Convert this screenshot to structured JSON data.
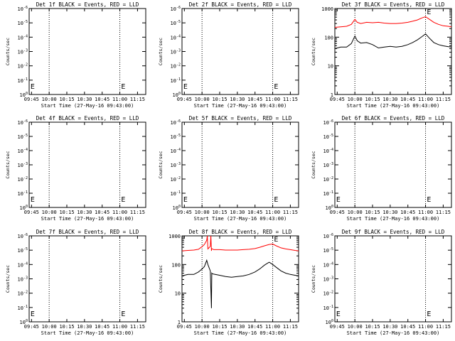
{
  "page": {
    "title": "",
    "background": "#ffffff"
  },
  "style": {
    "events_color": "#000000",
    "lld_color": "#ff0000",
    "axis_color": "#000000"
  },
  "chart_data": [
    {
      "type": "line",
      "detector": "1f",
      "title": "Det 1f BLACK = Events, RED = LLD",
      "xlabel": "Start Time (27-May-16 09:43:00)",
      "ylabel": "Counts/sec",
      "y_scale": "log-decade-labels",
      "ytick_labels": [
        "10^0",
        "10^-1",
        "10^-2",
        "10^-3",
        "10^-4",
        "10^-5",
        "10^-6"
      ],
      "xtick_labels": [
        "09:45",
        "10:00",
        "10:15",
        "10:30",
        "10:45",
        "11:00",
        "11:15"
      ],
      "x_unit": "minutes after 09:43",
      "xlim": [
        0,
        99
      ],
      "vertical_markers_min": [
        17,
        77
      ],
      "attenuator_marks": [
        {
          "x_min": 0.5,
          "label": "E"
        },
        {
          "x_min": 77.5,
          "label": "E"
        }
      ],
      "series": []
    },
    {
      "type": "line",
      "detector": "2f",
      "title": "Det 2f BLACK = Events, RED = LLD",
      "xlabel": "Start Time (27-May-16 09:43:00)",
      "ylabel": "Counts/sec",
      "y_scale": "log-decade-labels",
      "ytick_labels": [
        "10^0",
        "10^-1",
        "10^-2",
        "10^-3",
        "10^-4",
        "10^-5",
        "10^-6"
      ],
      "xtick_labels": [
        "09:45",
        "10:00",
        "10:15",
        "10:30",
        "10:45",
        "11:00",
        "11:15"
      ],
      "x_unit": "minutes after 09:43",
      "xlim": [
        0,
        99
      ],
      "vertical_markers_min": [
        17,
        77
      ],
      "attenuator_marks": [
        {
          "x_min": 0.5,
          "label": "E"
        },
        {
          "x_min": 77.5,
          "label": "E"
        }
      ],
      "series": []
    },
    {
      "type": "line",
      "detector": "3f",
      "title": "Det 3f BLACK = Events, RED = LLD",
      "xlabel": "Start Time (27-May-16 09:43:00)",
      "ylabel": "Counts/sec",
      "y_scale": "log",
      "ylim": [
        1,
        1000
      ],
      "ytick_labels": [
        "1",
        "10",
        "100",
        "1000"
      ],
      "xtick_labels": [
        "09:45",
        "10:00",
        "10:15",
        "10:30",
        "10:45",
        "11:00",
        "11:15"
      ],
      "x_unit": "minutes after 09:43",
      "xlim": [
        0,
        99
      ],
      "vertical_markers_min": [
        17,
        77
      ],
      "attenuator_marks": [
        {
          "x_min": 77.5,
          "label": "E"
        }
      ],
      "series": [
        {
          "color": "#ff0000",
          "x": [
            0,
            5,
            10,
            14,
            17,
            19,
            22,
            27,
            32,
            37,
            42,
            47,
            52,
            57,
            62,
            66,
            70,
            74,
            77,
            80,
            84,
            88,
            92,
            96,
            99
          ],
          "y": [
            220,
            230,
            240,
            280,
            420,
            330,
            300,
            330,
            320,
            330,
            310,
            300,
            300,
            310,
            330,
            360,
            400,
            470,
            520,
            430,
            330,
            280,
            250,
            240,
            230
          ]
        },
        {
          "color": "#000000",
          "x": [
            0,
            5,
            10,
            14,
            17,
            19,
            22,
            27,
            32,
            37,
            42,
            47,
            52,
            57,
            62,
            66,
            70,
            74,
            77,
            80,
            84,
            88,
            92,
            96,
            99
          ],
          "y": [
            40,
            45,
            45,
            60,
            110,
            75,
            62,
            65,
            55,
            42,
            45,
            48,
            45,
            48,
            55,
            65,
            80,
            105,
            130,
            95,
            65,
            55,
            50,
            47,
            45
          ]
        }
      ]
    },
    {
      "type": "line",
      "detector": "4f",
      "title": "Det 4f BLACK = Events, RED = LLD",
      "xlabel": "Start Time (27-May-16 09:43:00)",
      "ylabel": "Counts/sec",
      "y_scale": "log-decade-labels",
      "ytick_labels": [
        "10^0",
        "10^-1",
        "10^-2",
        "10^-3",
        "10^-4",
        "10^-5",
        "10^-6"
      ],
      "xtick_labels": [
        "09:45",
        "10:00",
        "10:15",
        "10:30",
        "10:45",
        "11:00",
        "11:15"
      ],
      "x_unit": "minutes after 09:43",
      "xlim": [
        0,
        99
      ],
      "vertical_markers_min": [
        17,
        77
      ],
      "attenuator_marks": [
        {
          "x_min": 0.5,
          "label": "E"
        },
        {
          "x_min": 77.5,
          "label": "E"
        }
      ],
      "series": []
    },
    {
      "type": "line",
      "detector": "5f",
      "title": "Det 5f BLACK = Events, RED = LLD",
      "xlabel": "Start Time (27-May-16 09:43:00)",
      "ylabel": "Counts/sec",
      "y_scale": "log-decade-labels",
      "ytick_labels": [
        "10^0",
        "10^-1",
        "10^-2",
        "10^-3",
        "10^-4",
        "10^-5",
        "10^-6"
      ],
      "xtick_labels": [
        "09:45",
        "10:00",
        "10:15",
        "10:30",
        "10:45",
        "11:00",
        "11:15"
      ],
      "x_unit": "minutes after 09:43",
      "xlim": [
        0,
        99
      ],
      "vertical_markers_min": [
        17,
        77
      ],
      "attenuator_marks": [
        {
          "x_min": 0.5,
          "label": "E"
        },
        {
          "x_min": 77.5,
          "label": "E"
        }
      ],
      "series": []
    },
    {
      "type": "line",
      "detector": "6f",
      "title": "Det 6f BLACK = Events, RED = LLD",
      "xlabel": "Start Time (27-May-16 09:43:00)",
      "ylabel": "Counts/sec",
      "y_scale": "log-decade-labels",
      "ytick_labels": [
        "10^0",
        "10^-1",
        "10^-2",
        "10^-3",
        "10^-4",
        "10^-5",
        "10^-6"
      ],
      "xtick_labels": [
        "09:45",
        "10:00",
        "10:15",
        "10:30",
        "10:45",
        "11:00",
        "11:15"
      ],
      "x_unit": "minutes after 09:43",
      "xlim": [
        0,
        99
      ],
      "vertical_markers_min": [
        17,
        77
      ],
      "attenuator_marks": [
        {
          "x_min": 0.5,
          "label": "E"
        },
        {
          "x_min": 77.5,
          "label": "E"
        }
      ],
      "series": []
    },
    {
      "type": "line",
      "detector": "7f",
      "title": "Det 7f BLACK = Events, RED = LLD",
      "xlabel": "Start Time (27-May-16 09:43:00)",
      "ylabel": "Counts/sec",
      "y_scale": "log-decade-labels",
      "ytick_labels": [
        "10^0",
        "10^-1",
        "10^-2",
        "10^-3",
        "10^-4",
        "10^-5",
        "10^-6"
      ],
      "xtick_labels": [
        "09:45",
        "10:00",
        "10:15",
        "10:30",
        "10:45",
        "11:00",
        "11:15"
      ],
      "x_unit": "minutes after 09:43",
      "xlim": [
        0,
        99
      ],
      "vertical_markers_min": [
        17,
        77
      ],
      "attenuator_marks": [
        {
          "x_min": 0.5,
          "label": "E"
        },
        {
          "x_min": 77.5,
          "label": "E"
        }
      ],
      "series": []
    },
    {
      "type": "line",
      "detector": "8f",
      "title": "Det 8f BLACK = Events, RED = LLD",
      "xlabel": "Start Time (27-May-16 09:43:00)",
      "ylabel": "Counts/sec",
      "y_scale": "log",
      "ylim": [
        1,
        1000
      ],
      "ytick_labels": [
        "1",
        "10",
        "100",
        "1000"
      ],
      "xtick_labels": [
        "09:45",
        "10:00",
        "10:15",
        "10:30",
        "10:45",
        "11:00",
        "11:15"
      ],
      "x_unit": "minutes after 09:43",
      "xlim": [
        0,
        99
      ],
      "vertical_markers_min": [
        17,
        77
      ],
      "attenuator_marks": [
        {
          "x_min": 77.5,
          "label": "E"
        }
      ],
      "series": [
        {
          "color": "#ff0000",
          "x": [
            0,
            5,
            10,
            14,
            17,
            19,
            21,
            21.5,
            22,
            24,
            24.5,
            25,
            25.2,
            27,
            32,
            37,
            42,
            47,
            52,
            57,
            62,
            66,
            70,
            74,
            77,
            80,
            84,
            88,
            92,
            96,
            99
          ],
          "y": [
            300,
            310,
            320,
            340,
            420,
            500,
            700,
            1000,
            350,
            430,
            1000,
            300,
            360,
            330,
            330,
            320,
            320,
            320,
            330,
            340,
            360,
            400,
            450,
            500,
            520,
            450,
            380,
            350,
            330,
            310,
            300
          ]
        },
        {
          "color": "#000000",
          "x": [
            0,
            5,
            10,
            14,
            17,
            19,
            21,
            22,
            24,
            25,
            25.3,
            25.6,
            27,
            32,
            37,
            42,
            47,
            52,
            57,
            62,
            66,
            70,
            74,
            77,
            80,
            84,
            88,
            92,
            96,
            99
          ],
          "y": [
            40,
            45,
            45,
            55,
            70,
            85,
            140,
            100,
            60,
            3,
            50,
            48,
            46,
            42,
            38,
            36,
            38,
            40,
            45,
            55,
            70,
            95,
            120,
            100,
            80,
            60,
            50,
            45,
            42,
            40
          ]
        }
      ]
    },
    {
      "type": "line",
      "detector": "9f",
      "title": "Det 9f BLACK = Events, RED = LLD",
      "xlabel": "Start Time (27-May-16 09:43:00)",
      "ylabel": "Counts/sec",
      "y_scale": "log-decade-labels",
      "ytick_labels": [
        "10^0",
        "10^-1",
        "10^-2",
        "10^-3",
        "10^-4",
        "10^-5",
        "10^-6"
      ],
      "xtick_labels": [
        "09:45",
        "10:00",
        "10:15",
        "10:30",
        "10:45",
        "11:00",
        "11:15"
      ],
      "x_unit": "minutes after 09:43",
      "xlim": [
        0,
        99
      ],
      "vertical_markers_min": [
        17,
        77
      ],
      "attenuator_marks": [
        {
          "x_min": 0.5,
          "label": "E"
        },
        {
          "x_min": 77.5,
          "label": "E"
        }
      ],
      "series": []
    }
  ]
}
